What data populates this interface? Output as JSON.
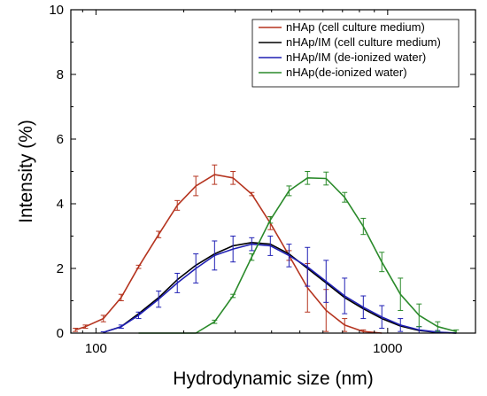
{
  "chart_data": {
    "type": "line",
    "xlabel": "Hydrodynamic size (nm)",
    "ylabel": "Intensity (%)",
    "xscale": "log",
    "xlim": [
      82,
      2000
    ],
    "ylim": [
      0,
      10
    ],
    "x_ticks": [
      100,
      1000
    ],
    "x_tick_labels": [
      "100",
      "1000"
    ],
    "y_ticks": [
      0,
      2,
      4,
      6,
      8,
      10
    ],
    "y_tick_labels": [
      "0",
      "2",
      "4",
      "6",
      "8",
      "10"
    ],
    "grid": false,
    "legend_position": "top-right",
    "series": [
      {
        "name": "nHAp (cell culture medium)",
        "color": "#b5341f",
        "x": [
          85,
          92,
          106,
          122,
          140,
          164,
          190,
          220,
          255,
          295,
          342,
          396,
          459,
          531,
          615,
          712,
          825,
          955
        ],
        "y": [
          0.1,
          0.2,
          0.45,
          1.1,
          2.05,
          3.05,
          3.95,
          4.55,
          4.9,
          4.8,
          4.3,
          3.4,
          2.4,
          1.4,
          0.7,
          0.25,
          0.05,
          0.0
        ],
        "err": [
          0.05,
          0.05,
          0.1,
          0.1,
          0.05,
          0.1,
          0.15,
          0.3,
          0.3,
          0.2,
          0.05,
          0.2,
          0.15,
          0.75,
          0.65,
          0.2,
          0.05,
          0.0
        ]
      },
      {
        "name": "nHAp/IM (cell culture medium)",
        "color": "#000000",
        "x": [
          106,
          122,
          140,
          164,
          190,
          220,
          255,
          295,
          342,
          396,
          459,
          531,
          615,
          712,
          825,
          955,
          1106,
          1281,
          1484,
          1718
        ],
        "y": [
          0.02,
          0.2,
          0.6,
          1.1,
          1.65,
          2.1,
          2.45,
          2.7,
          2.8,
          2.75,
          2.45,
          2.0,
          1.55,
          1.1,
          0.75,
          0.45,
          0.22,
          0.08,
          0.02,
          0.0
        ],
        "err": [
          0,
          0,
          0,
          0,
          0,
          0,
          0,
          0,
          0,
          0,
          0,
          0,
          0,
          0,
          0,
          0,
          0,
          0,
          0,
          0
        ]
      },
      {
        "name": "nHAp/IM (de-ionized water)",
        "color": "#1f1fb4",
        "x": [
          106,
          122,
          140,
          164,
          190,
          220,
          255,
          295,
          342,
          396,
          459,
          531,
          615,
          712,
          825,
          955,
          1106,
          1281,
          1484,
          1718
        ],
        "y": [
          0.02,
          0.2,
          0.55,
          1.05,
          1.55,
          2.0,
          2.4,
          2.6,
          2.75,
          2.7,
          2.4,
          2.05,
          1.6,
          1.15,
          0.8,
          0.5,
          0.25,
          0.1,
          0.03,
          0.0
        ],
        "err": [
          0.02,
          0.05,
          0.1,
          0.25,
          0.3,
          0.45,
          0.45,
          0.4,
          0.2,
          0.3,
          0.35,
          0.6,
          0.65,
          0.55,
          0.35,
          0.35,
          0.2,
          0.1,
          0.05,
          0.0
        ]
      },
      {
        "name": "nHAp(de-ionized water)",
        "color": "#2a8a2a",
        "x": [
          140,
          164,
          190,
          220,
          255,
          295,
          342,
          396,
          459,
          531,
          615,
          712,
          825,
          955,
          1106,
          1281,
          1484,
          1718
        ],
        "y": [
          0.0,
          0.0,
          0.0,
          0.0,
          0.35,
          1.15,
          2.35,
          3.5,
          4.4,
          4.8,
          4.78,
          4.2,
          3.3,
          2.2,
          1.2,
          0.55,
          0.2,
          0.05
        ],
        "err": [
          0.0,
          0.0,
          0.0,
          0.0,
          0.05,
          0.05,
          0.1,
          0.1,
          0.15,
          0.2,
          0.2,
          0.15,
          0.25,
          0.3,
          0.5,
          0.35,
          0.15,
          0.05
        ]
      }
    ]
  }
}
